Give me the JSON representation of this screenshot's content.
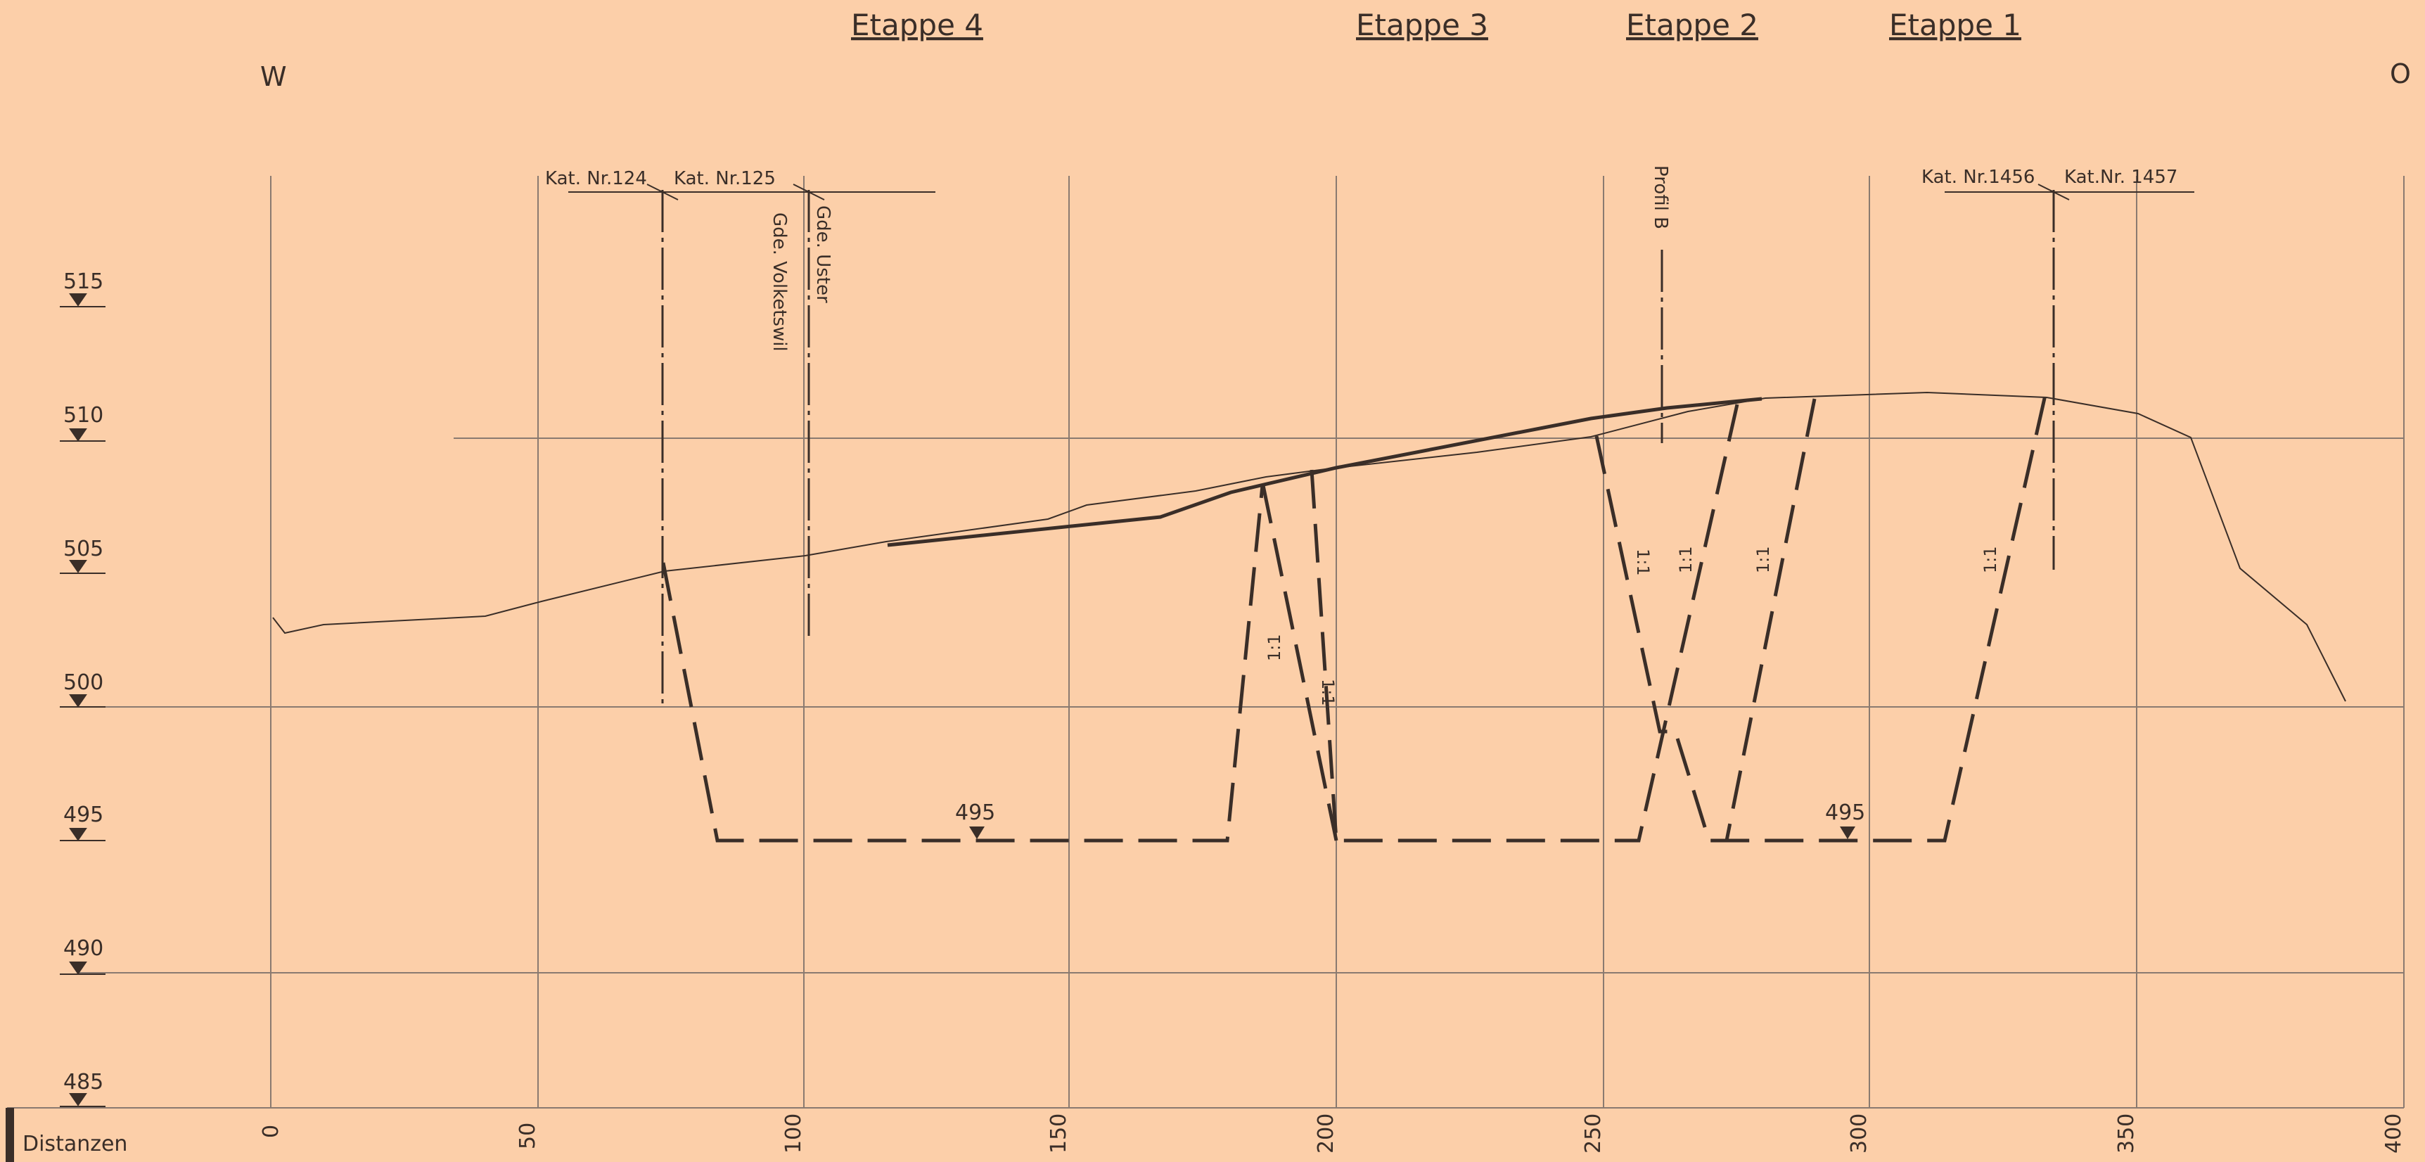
{
  "header": {
    "etappen": [
      "Etappe 4",
      "Etappe 3",
      "Etappe 2",
      "Etappe 1"
    ],
    "west": "W",
    "east": "O"
  },
  "annotations": {
    "kat_124": "Kat. Nr.124",
    "kat_125": "Kat. Nr.125",
    "kat_1456": "Kat. Nr.1456",
    "kat_1457": "Kat.Nr. 1457",
    "gde_uster": "Gde. Uster",
    "gde_volketswil": "Gde. Volketswil",
    "profil_b": "Profil B",
    "slope_label": "1:1",
    "level_495_left": "495",
    "level_495_right": "495"
  },
  "axes": {
    "elevation_labels": [
      "515",
      "510",
      "505",
      "500",
      "495",
      "490",
      "485"
    ],
    "distance_title": "Distanzen",
    "distance_labels": [
      "0",
      "50",
      "100",
      "150",
      "200",
      "250",
      "300",
      "350",
      "400"
    ]
  },
  "colors": {
    "paper": "#FCCFA9",
    "ink": "#3a2e28",
    "grid": "#8a7a70"
  }
}
